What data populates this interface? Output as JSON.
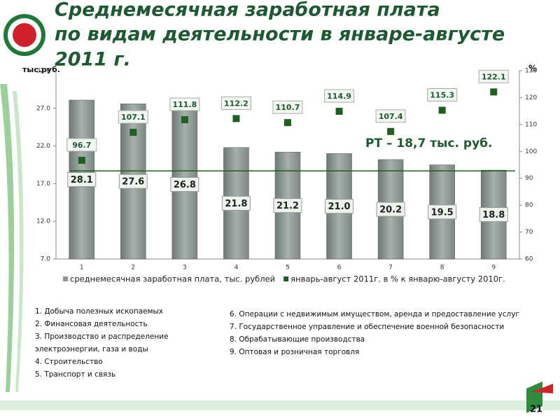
{
  "chart_data": {
    "type": "bar_line",
    "title_lines": [
      "Среднемесячная заработная плата",
      "по видам деятельности в январе-августе",
      "2011 г."
    ],
    "y_label": "тыс.руб.",
    "y2_label": "%",
    "categories": [
      "1",
      "2",
      "3",
      "4",
      "5",
      "6",
      "7",
      "8",
      "9"
    ],
    "series": [
      {
        "name": "среднемесячная заработная плата, тыс. рублей",
        "color": "#8e9893",
        "type": "bar",
        "values": [
          28.1,
          27.6,
          26.8,
          21.8,
          21.2,
          21.0,
          20.2,
          19.5,
          18.8
        ],
        "value_labels": [
          "28.1",
          "27.6",
          "26.8",
          "21.8",
          "21.2",
          "21.0",
          "20.2",
          "19.5",
          "18.8"
        ]
      },
      {
        "name": "январь-август 2011г. в % к январю-августу 2010г.",
        "color": "#1f5f1f",
        "type": "marker",
        "axis": "y2",
        "values": [
          96.7,
          107.1,
          111.8,
          112.2,
          110.7,
          114.9,
          107.4,
          115.3,
          122.1
        ]
      }
    ],
    "reference_value": 18.7,
    "reference_label": "РТ – 18,7 тыс. руб.",
    "ylim": [
      7,
      32
    ],
    "yticks": [
      {
        "value": 7,
        "label": "7.0"
      },
      {
        "value": 12,
        "label": "12.0"
      },
      {
        "value": 17,
        "label": "17.0"
      },
      {
        "value": 22,
        "label": "22.0"
      },
      {
        "value": 27,
        "label": "27.0"
      },
      {
        "value": 32,
        "label": "32.0"
      }
    ],
    "y2lim": [
      60,
      130
    ],
    "y2ticks": [
      60,
      70,
      80,
      90,
      100,
      110,
      120,
      130
    ],
    "legend": "bottom"
  },
  "notes_left": [
    "1. Добыча полезных ископаемых",
    "2. Финансовая деятельность",
    "3. Производство и распределение электроэнергии, газа и воды",
    "4. Строительство",
    "5. Транспорт и связь"
  ],
  "notes_right": [
    "6. Операции с недвижимым имуществом, аренда и предоставление услуг",
    "7. Государственное управление и обеспечение военной безопасности",
    "8. Обрабатывающие производства",
    "9. Оптовая и розничная торговля"
  ],
  "page_number": "21"
}
